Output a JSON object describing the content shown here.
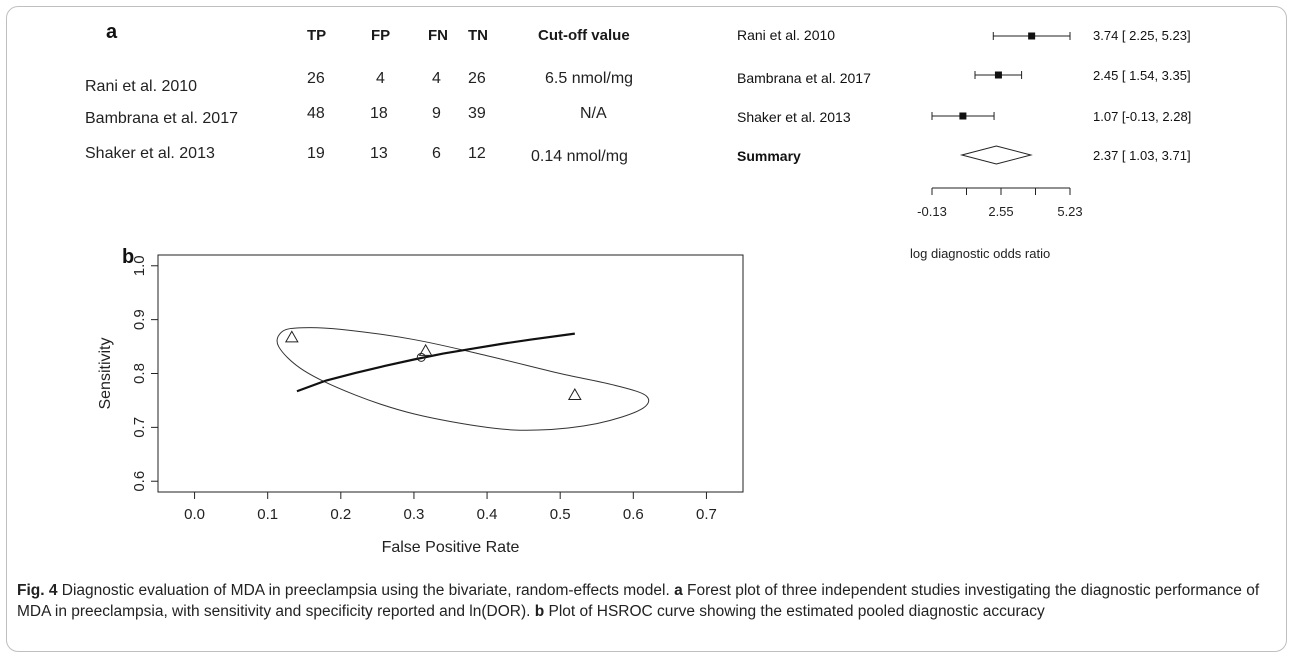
{
  "panel_a": {
    "letter": "a",
    "table": {
      "columns": [
        "TP",
        "FP",
        "FN",
        "TN",
        "Cut-off value"
      ],
      "rows": [
        {
          "study": "Rani et al. 2010",
          "cells": [
            "26",
            "4",
            "4",
            "26",
            "6.5 nmol/mg"
          ]
        },
        {
          "study": "Bambrana et al. 2017",
          "cells": [
            "48",
            "18",
            "9",
            "39",
            "N/A"
          ]
        },
        {
          "study": "Shaker et al. 2013",
          "cells": [
            "19",
            "13",
            "6",
            "12",
            "0.14 nmol/mg"
          ]
        }
      ]
    }
  },
  "chart_data": [
    {
      "type": "forest",
      "studies": [
        {
          "label": "Rani et al. 2010",
          "estimate": 3.74,
          "ci": [
            2.25,
            5.23
          ],
          "display": "3.74 [ 2.25,  5.23]"
        },
        {
          "label": "Bambrana et al. 2017",
          "estimate": 2.45,
          "ci": [
            1.54,
            3.35
          ],
          "display": "2.45 [ 1.54,  3.35]"
        },
        {
          "label": "Shaker et al. 2013",
          "estimate": 1.07,
          "ci": [
            -0.13,
            2.28
          ],
          "display": "1.07 [-0.13,  2.28]"
        }
      ],
      "summary": {
        "label": "Summary",
        "estimate": 2.37,
        "ci": [
          1.03,
          3.71
        ],
        "display": "2.37 [ 1.03,  3.71]"
      },
      "xticks": [
        -0.13,
        1.21,
        2.55,
        3.89,
        5.23
      ],
      "xtick_labels": [
        "-0.13",
        "",
        "2.55",
        "",
        "5.23"
      ],
      "xlabel": "log diagnostic odds ratio"
    },
    {
      "type": "scatter",
      "panel_letter": "b",
      "xlabel": "False Positive Rate",
      "ylabel": "Sensitivity",
      "xlim": [
        -0.05,
        0.75
      ],
      "ylim": [
        0.58,
        1.02
      ],
      "xticks": [
        0.0,
        0.1,
        0.2,
        0.3,
        0.4,
        0.5,
        0.6,
        0.7
      ],
      "xtick_labels": [
        "0.0",
        "0.1",
        "0.2",
        "0.3",
        "0.4",
        "0.5",
        "0.6",
        "0.7"
      ],
      "yticks": [
        0.6,
        0.7,
        0.8,
        0.9,
        1.0
      ],
      "ytick_labels": [
        "0.6",
        "0.7",
        "0.8",
        "0.9",
        "1.0"
      ],
      "study_points": [
        {
          "x": 0.133,
          "y": 0.867
        },
        {
          "x": 0.316,
          "y": 0.842
        },
        {
          "x": 0.52,
          "y": 0.76
        }
      ],
      "summary_point": {
        "x": 0.31,
        "y": 0.83
      },
      "hsroc_curve": [
        {
          "x": 0.14,
          "y": 0.767
        },
        {
          "x": 0.18,
          "y": 0.787
        },
        {
          "x": 0.22,
          "y": 0.801
        },
        {
          "x": 0.26,
          "y": 0.814
        },
        {
          "x": 0.3,
          "y": 0.826
        },
        {
          "x": 0.34,
          "y": 0.837
        },
        {
          "x": 0.38,
          "y": 0.846
        },
        {
          "x": 0.42,
          "y": 0.855
        },
        {
          "x": 0.46,
          "y": 0.863
        },
        {
          "x": 0.52,
          "y": 0.874
        }
      ],
      "confidence_region": [
        {
          "x": 0.148,
          "y": 0.885
        },
        {
          "x": 0.2,
          "y": 0.882
        },
        {
          "x": 0.3,
          "y": 0.863
        },
        {
          "x": 0.4,
          "y": 0.833
        },
        {
          "x": 0.5,
          "y": 0.8
        },
        {
          "x": 0.575,
          "y": 0.778
        },
        {
          "x": 0.618,
          "y": 0.758
        },
        {
          "x": 0.61,
          "y": 0.733
        },
        {
          "x": 0.55,
          "y": 0.707
        },
        {
          "x": 0.47,
          "y": 0.695
        },
        {
          "x": 0.4,
          "y": 0.7
        },
        {
          "x": 0.3,
          "y": 0.725
        },
        {
          "x": 0.22,
          "y": 0.76
        },
        {
          "x": 0.15,
          "y": 0.805
        },
        {
          "x": 0.115,
          "y": 0.85
        },
        {
          "x": 0.12,
          "y": 0.878
        }
      ]
    }
  ],
  "caption": {
    "fig_label": "Fig. 4",
    "text_1": "  Diagnostic evaluation of MDA in preeclampsia using the bivariate, random-effects model. ",
    "a_label": "a",
    "text_2": " Forest plot of three independent studies investigating the diagnostic performance of MDA in preeclampsia, with sensitivity and specificity reported and ln(DOR). ",
    "b_label": "b",
    "text_3": " Plot of HSROC curve showing the estimated pooled diagnostic accuracy"
  }
}
